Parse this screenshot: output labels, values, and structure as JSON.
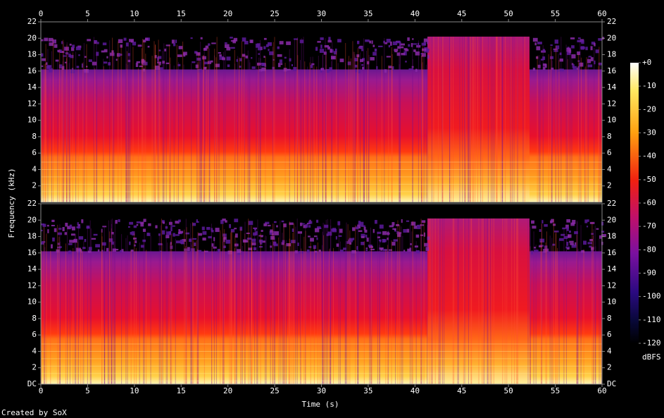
{
  "chart_data": {
    "type": "spectrogram",
    "xlabel": "Time (s)",
    "ylabel": "Frequency (kHz)",
    "footer": "Created by SoX",
    "xlim": [
      0,
      60
    ],
    "xticks": [
      0,
      5,
      10,
      15,
      20,
      25,
      30,
      35,
      40,
      45,
      50,
      55,
      60
    ],
    "ylim": [
      0,
      22
    ],
    "channels": [
      {
        "yticks": [
          2,
          4,
          6,
          8,
          10,
          12,
          14,
          16,
          18,
          20,
          22
        ]
      },
      {
        "yticks": [
          {
            "value": 0,
            "label": "DC"
          },
          2,
          4,
          6,
          8,
          10,
          12,
          14,
          16,
          18,
          20,
          22
        ]
      }
    ],
    "colorbar": {
      "label": "dBFS",
      "lim": [
        -120,
        0
      ],
      "ticks": [
        {
          "value": 0,
          "label": "+0"
        },
        -10,
        -20,
        -30,
        -40,
        -50,
        -60,
        -70,
        -80,
        -90,
        -100,
        -110,
        -120
      ]
    }
  }
}
